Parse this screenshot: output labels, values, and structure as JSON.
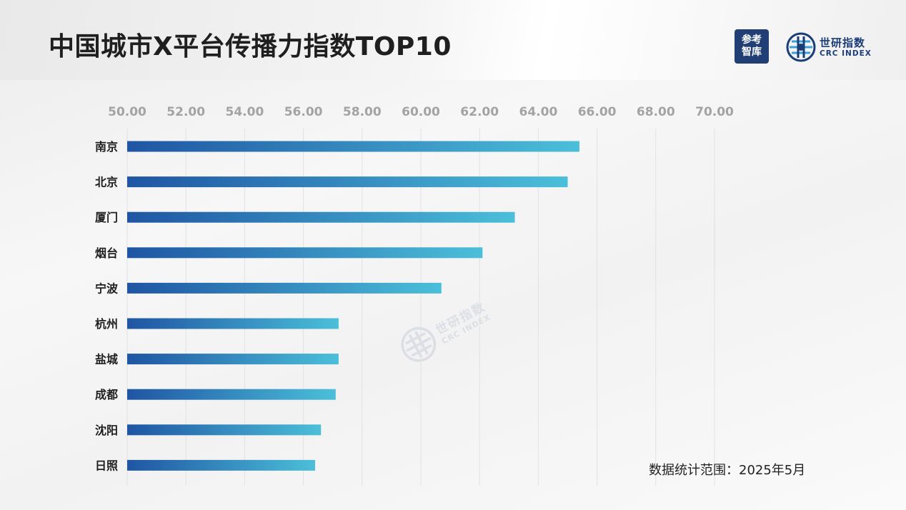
{
  "page": {
    "title": "中国城市X平台传播力指数TOP10",
    "footnote": "数据统计范围：2025年5月"
  },
  "logos": {
    "cankao_line1": "参考",
    "cankao_line2": "智库",
    "crc_cn": "世研指数",
    "crc_en": "CRC INDEX"
  },
  "colors": {
    "bar_start": "#1f55a3",
    "bar_end": "#4bbfd9",
    "grid": "#e2e2e2",
    "tick_text": "#a3a3a3",
    "brand": "#1b3d77"
  },
  "chart_data": {
    "type": "bar",
    "orientation": "horizontal",
    "categories": [
      "南京",
      "北京",
      "厦门",
      "烟台",
      "宁波",
      "杭州",
      "盐城",
      "成都",
      "沈阳",
      "日照"
    ],
    "values": [
      65.4,
      65.0,
      63.2,
      62.1,
      60.7,
      57.2,
      57.2,
      57.1,
      56.6,
      56.4
    ],
    "xlim": [
      50,
      70
    ],
    "xticks": [
      "50.00",
      "52.00",
      "54.00",
      "56.00",
      "58.00",
      "60.00",
      "62.00",
      "64.00",
      "66.00",
      "68.00",
      "70.00"
    ],
    "axis_position": "top",
    "grid": true,
    "legend": "none"
  }
}
